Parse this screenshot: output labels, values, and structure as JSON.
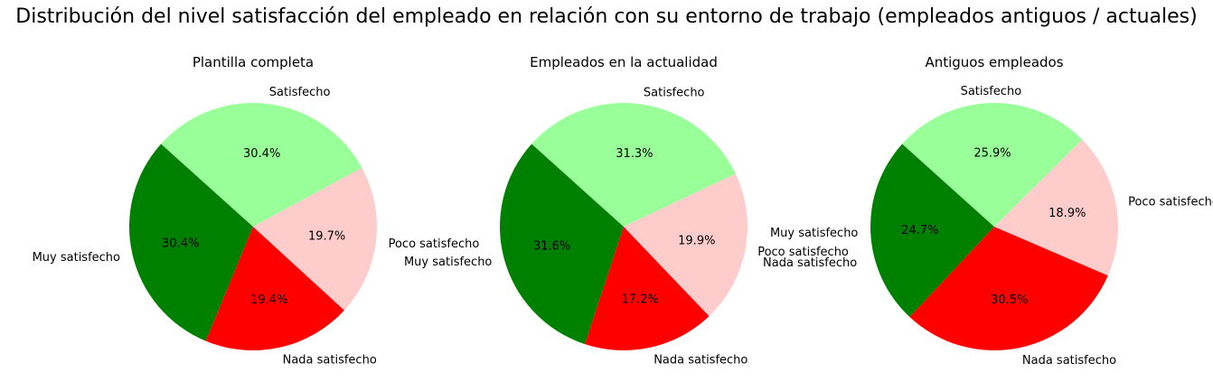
{
  "title": "Distribución del nivel satisfacción del empleado en relación con su entorno de trabajo (empleados antiguos / actuales)",
  "colors": {
    "Muy satisfecho": "#008000",
    "Nada satisfecho": "#ff0000",
    "Poco satisfecho": "#ffcccc",
    "Satisfecho": "#99ff99"
  },
  "chart_data": [
    {
      "type": "pie",
      "title": "Plantilla completa",
      "slices": [
        {
          "label": "Muy satisfecho",
          "value": 30.4,
          "text": "30.4%"
        },
        {
          "label": "Nada satisfecho",
          "value": 19.4,
          "text": "19.4%"
        },
        {
          "label": "Poco satisfecho",
          "value": 19.7,
          "text": "19.7%"
        },
        {
          "label": "Satisfecho",
          "value": 30.4,
          "text": "30.4%"
        }
      ]
    },
    {
      "type": "pie",
      "title": "Empleados en la actualidad",
      "slices": [
        {
          "label": "Muy satisfecho",
          "value": 31.6,
          "text": "31.6%"
        },
        {
          "label": "Nada satisfecho",
          "value": 17.2,
          "text": "17.2%"
        },
        {
          "label": "Poco satisfecho",
          "value": 19.9,
          "text": "19.9%"
        },
        {
          "label": "Satisfecho",
          "value": 31.3,
          "text": "31.3%"
        }
      ],
      "extra_labels": [
        "Nada satisfecho"
      ]
    },
    {
      "type": "pie",
      "title": "Antiguos empleados",
      "slices": [
        {
          "label": "Muy satisfecho",
          "value": 24.7,
          "text": "24.7%"
        },
        {
          "label": "Nada satisfecho",
          "value": 30.5,
          "text": "30.5%"
        },
        {
          "label": "Poco satisfecho",
          "value": 18.9,
          "text": "18.9%"
        },
        {
          "label": "Satisfecho",
          "value": 25.9,
          "text": "25.9%"
        }
      ]
    }
  ]
}
